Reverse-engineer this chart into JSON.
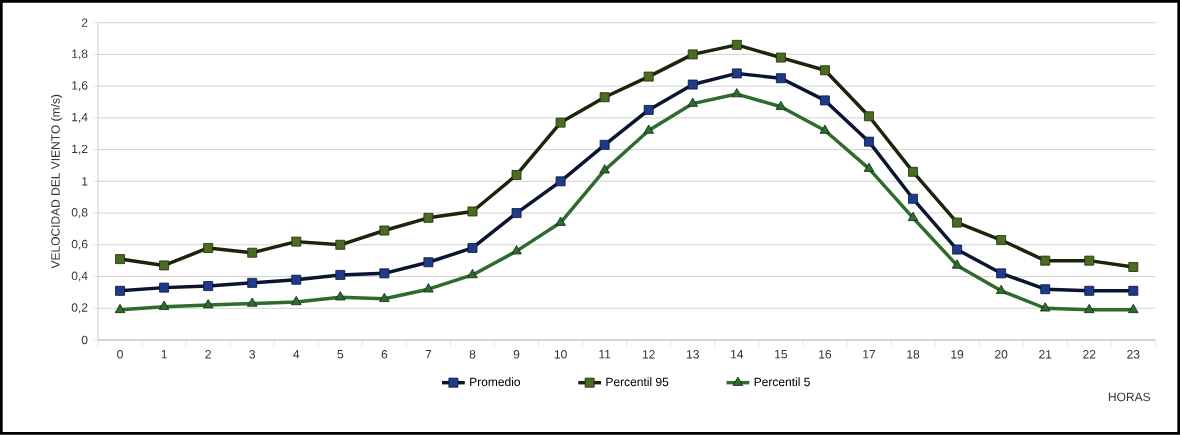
{
  "chart_data": {
    "type": "line",
    "ylabel": "VELOCIDAD DEL VIENTO (m/s)",
    "xlabel": "HORAS",
    "categories": [
      "0",
      "1",
      "2",
      "3",
      "4",
      "5",
      "6",
      "7",
      "8",
      "9",
      "10",
      "11",
      "12",
      "13",
      "14",
      "15",
      "16",
      "17",
      "18",
      "19",
      "20",
      "21",
      "22",
      "23"
    ],
    "series": [
      {
        "name": "Promedio",
        "color": "#1f3a8a",
        "marker": "square",
        "values": [
          0.31,
          0.33,
          0.34,
          0.36,
          0.38,
          0.41,
          0.42,
          0.49,
          0.58,
          0.8,
          1.0,
          1.23,
          1.45,
          1.61,
          1.68,
          1.65,
          1.51,
          1.25,
          0.89,
          0.57,
          0.42,
          0.32,
          0.31,
          0.31
        ]
      },
      {
        "name": "Percentil 95",
        "color": "#4a6b20",
        "marker": "square",
        "values": [
          0.51,
          0.47,
          0.58,
          0.55,
          0.62,
          0.6,
          0.69,
          0.77,
          0.81,
          1.04,
          1.37,
          1.53,
          1.66,
          1.8,
          1.86,
          1.78,
          1.7,
          1.41,
          1.06,
          0.74,
          0.63,
          0.5,
          0.5,
          0.46
        ]
      },
      {
        "name": "Percentil 5",
        "color": "#2e6b2e",
        "marker": "triangle",
        "values": [
          0.19,
          0.21,
          0.22,
          0.23,
          0.24,
          0.27,
          0.26,
          0.32,
          0.41,
          0.56,
          0.74,
          1.07,
          1.32,
          1.49,
          1.55,
          1.47,
          1.32,
          1.08,
          0.77,
          0.47,
          0.31,
          0.2,
          0.19,
          0.19
        ]
      }
    ],
    "ylim": [
      0,
      2
    ],
    "yticks": [
      0,
      {
        "value": 0.2,
        "label": "0,2"
      },
      {
        "value": 0.4,
        "label": "0,4"
      },
      {
        "value": 0.6,
        "label": "0,6"
      },
      {
        "value": 0.8,
        "label": "0,8"
      },
      1,
      {
        "value": 1.2,
        "label": "1,2"
      },
      {
        "value": 1.4,
        "label": "1,4"
      },
      {
        "value": 1.6,
        "label": "1,6"
      },
      {
        "value": 1.8,
        "label": "1,8"
      },
      2
    ],
    "grid": "y",
    "legend": "bottom"
  }
}
